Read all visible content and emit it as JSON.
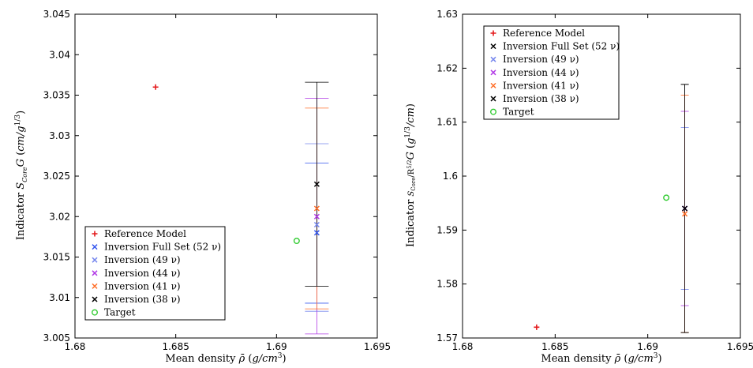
{
  "chart_data": [
    {
      "type": "scatter",
      "id": "left",
      "xlabel": "Mean density ρ̄ (g/cm³)",
      "ylabel": "Indicator S_Core G (cm/g^{1/3})",
      "xlim": [
        1.68,
        1.695
      ],
      "ylim": [
        3.005,
        3.045
      ],
      "xticks": [
        "1.68",
        "1.685",
        "1.69",
        "1.695"
      ],
      "yticks": [
        "3.005",
        "3.01",
        "3.015",
        "3.02",
        "3.025",
        "3.03",
        "3.035",
        "3.04",
        "3.045"
      ],
      "legend_position": "lower-left",
      "series": [
        {
          "name": "Reference Model",
          "marker": "+",
          "color": "#e41a1c",
          "x": 1.684,
          "y": 3.036,
          "yerr": null
        },
        {
          "name": "Inversion Full Set (52 ν)",
          "marker": "x",
          "color": "#3355ee",
          "x": 1.692,
          "y": 3.018,
          "yerr": [
            3.0093,
            3.0266
          ]
        },
        {
          "name": "Inversion (49 ν)",
          "marker": "x",
          "color": "#7788ee",
          "x": 1.692,
          "y": 3.019,
          "yerr": [
            3.0083,
            3.029
          ]
        },
        {
          "name": "Inversion (44 ν)",
          "marker": "x",
          "color": "#b23be6",
          "x": 1.692,
          "y": 3.02,
          "yerr": [
            3.0055,
            3.0346
          ]
        },
        {
          "name": "Inversion (41 ν)",
          "marker": "x",
          "color": "#ff6f2a",
          "x": 1.692,
          "y": 3.021,
          "yerr": [
            3.0086,
            3.0334
          ]
        },
        {
          "name": "Inversion (38 ν)",
          "marker": "x",
          "color": "#000000",
          "x": 1.692,
          "y": 3.024,
          "yerr": [
            3.0114,
            3.0366
          ]
        },
        {
          "name": "Target",
          "marker": "o",
          "color": "#33cc33",
          "x": 1.691,
          "y": 3.017,
          "yerr": null
        }
      ]
    },
    {
      "type": "scatter",
      "id": "right",
      "xlabel": "Mean density ρ̄ (g/cm³)",
      "ylabel": "Indicator S_Core/R^{5/2} G (g^{1/3}/cm)",
      "xlim": [
        1.68,
        1.695
      ],
      "ylim": [
        1.57,
        1.63
      ],
      "xticks": [
        "1.68",
        "1.685",
        "1.69",
        "1.695"
      ],
      "yticks": [
        "1.57",
        "1.58",
        "1.59",
        "1.6",
        "1.61",
        "1.62",
        "1.63"
      ],
      "legend_position": "upper-left",
      "series": [
        {
          "name": "Reference Model",
          "marker": "+",
          "color": "#e41a1c",
          "x": 1.684,
          "y": 1.572,
          "yerr": null
        },
        {
          "name": "Inversion Full Set (52 ν)",
          "marker": "x",
          "color": "#000000",
          "x": 1.692,
          "y": 1.594,
          "yerr": [
            1.571,
            1.617
          ]
        },
        {
          "name": "Inversion (49 ν)",
          "marker": "x",
          "color": "#7788ee",
          "x": 1.692,
          "y": 1.594,
          "yerr": [
            1.579,
            1.609
          ]
        },
        {
          "name": "Inversion (44 ν)",
          "marker": "x",
          "color": "#b23be6",
          "x": 1.692,
          "y": 1.594,
          "yerr": [
            1.576,
            1.612
          ]
        },
        {
          "name": "Inversion (41 ν)",
          "marker": "x",
          "color": "#ff6f2a",
          "x": 1.692,
          "y": 1.593,
          "yerr": [
            1.571,
            1.615
          ]
        },
        {
          "name": "Inversion (38 ν)",
          "marker": "x",
          "color": "#000000",
          "x": 1.692,
          "y": 1.594,
          "yerr": [
            1.571,
            1.617
          ]
        },
        {
          "name": "Target",
          "marker": "o",
          "color": "#33cc33",
          "x": 1.691,
          "y": 1.596,
          "yerr": null
        }
      ]
    }
  ]
}
